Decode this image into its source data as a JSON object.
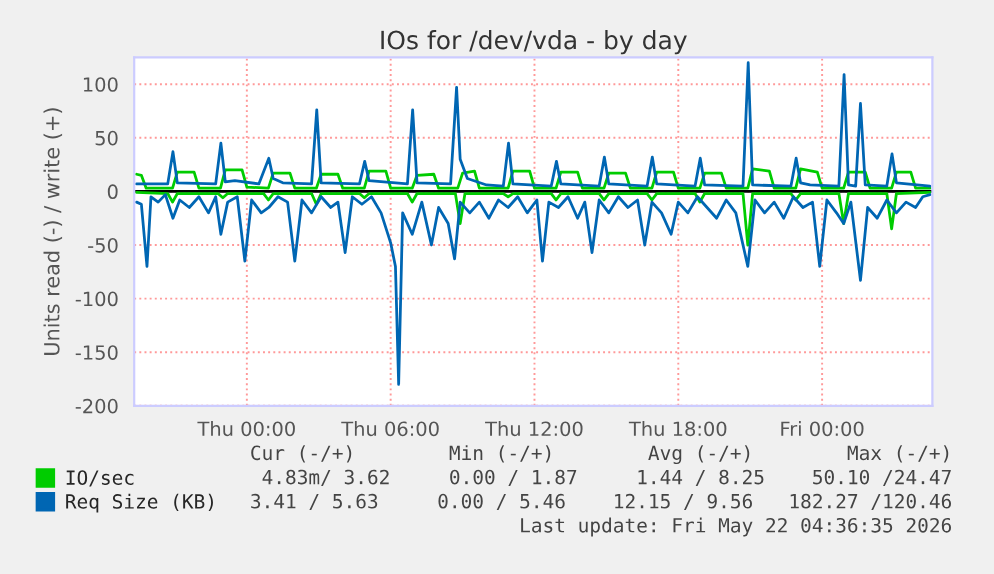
{
  "chart_data": {
    "type": "line",
    "title": "IOs for /dev/vda - by day",
    "ylabel": "Units read (-) / write (+)",
    "xlim": [
      "2026-05-20T19:18",
      "2026-05-22T04:36"
    ],
    "xticks": [
      {
        "value": "2026-05-21T00:00",
        "label": "Thu 00:00"
      },
      {
        "value": "2026-05-21T06:00",
        "label": "Thu 06:00"
      },
      {
        "value": "2026-05-21T12:00",
        "label": "Thu 12:00"
      },
      {
        "value": "2026-05-21T18:00",
        "label": "Thu 18:00"
      },
      {
        "value": "2026-05-22T00:00",
        "label": "Fri 00:00"
      }
    ],
    "ylim": [
      -200,
      125
    ],
    "yticks": [
      -200,
      -150,
      -100,
      -50,
      0,
      50,
      100
    ],
    "grid": true,
    "legend": "bottom left",
    "marker": "none",
    "line_style": "solid",
    "ref_lines": [
      {
        "axis": "y",
        "value": 0,
        "color": "#000000"
      }
    ],
    "series": [
      {
        "name": "IO/sec",
        "color": "#00cc00",
        "x": [
          "2026-05-20T19:24",
          "2026-05-20T19:36",
          "2026-05-20T19:48",
          "2026-05-20T20:54",
          "2026-05-20T21:06",
          "2026-05-20T21:48",
          "2026-05-20T22:00",
          "2026-05-20T22:54",
          "2026-05-20T23:06",
          "2026-05-20T23:48",
          "2026-05-21T00:00",
          "2026-05-21T00:54",
          "2026-05-21T01:06",
          "2026-05-21T01:48",
          "2026-05-21T02:00",
          "2026-05-21T02:54",
          "2026-05-21T03:06",
          "2026-05-21T03:48",
          "2026-05-21T04:00",
          "2026-05-21T04:54",
          "2026-05-21T05:06",
          "2026-05-21T05:48",
          "2026-05-21T06:00",
          "2026-05-21T06:54",
          "2026-05-21T07:06",
          "2026-05-21T07:48",
          "2026-05-21T08:00",
          "2026-05-21T08:48",
          "2026-05-21T09:00",
          "2026-05-21T09:30",
          "2026-05-21T09:42",
          "2026-05-21T10:54",
          "2026-05-21T11:06",
          "2026-05-21T11:48",
          "2026-05-21T12:00",
          "2026-05-21T12:54",
          "2026-05-21T13:06",
          "2026-05-21T13:48",
          "2026-05-21T14:00",
          "2026-05-21T14:54",
          "2026-05-21T15:06",
          "2026-05-21T15:48",
          "2026-05-21T16:00",
          "2026-05-21T16:54",
          "2026-05-21T17:06",
          "2026-05-21T17:48",
          "2026-05-21T18:00",
          "2026-05-21T18:54",
          "2026-05-21T19:06",
          "2026-05-21T19:48",
          "2026-05-21T20:00",
          "2026-05-21T20:54",
          "2026-05-21T21:06",
          "2026-05-21T21:48",
          "2026-05-21T22:00",
          "2026-05-21T22:54",
          "2026-05-21T23:06",
          "2026-05-21T23:48",
          "2026-05-22T00:00",
          "2026-05-22T00:54",
          "2026-05-22T01:06",
          "2026-05-22T01:48",
          "2026-05-22T02:00",
          "2026-05-22T02:54",
          "2026-05-22T03:06",
          "2026-05-22T03:42",
          "2026-05-22T03:54",
          "2026-05-22T04:30"
        ],
        "values": [
          16,
          15,
          3,
          3,
          18,
          18,
          3,
          3,
          20,
          20,
          4,
          3,
          17,
          17,
          3,
          3,
          16,
          16,
          3,
          3,
          19,
          19,
          3,
          3,
          15,
          16,
          3,
          3,
          17,
          19,
          3,
          3,
          19,
          19,
          3,
          3,
          18,
          18,
          3,
          3,
          17,
          17,
          3,
          3,
          18,
          18,
          3,
          3,
          17,
          17,
          3,
          3,
          21,
          19,
          3,
          3,
          21,
          18,
          3,
          3,
          18,
          18,
          3,
          3,
          18,
          18,
          3,
          3
        ]
      },
      {
        "color": "#00cc00",
        "x": [
          "2026-05-20T19:24",
          "2026-05-20T20:42",
          "2026-05-20T20:54",
          "2026-05-20T21:06",
          "2026-05-20T22:48",
          "2026-05-20T23:00",
          "2026-05-20T23:12",
          "2026-05-21T00:42",
          "2026-05-21T00:54",
          "2026-05-21T01:06",
          "2026-05-21T02:42",
          "2026-05-21T02:54",
          "2026-05-21T03:06",
          "2026-05-21T04:42",
          "2026-05-21T04:54",
          "2026-05-21T05:06",
          "2026-05-21T06:42",
          "2026-05-21T06:54",
          "2026-05-21T07:06",
          "2026-05-21T08:42",
          "2026-05-21T08:54",
          "2026-05-21T09:06",
          "2026-05-21T10:42",
          "2026-05-21T10:54",
          "2026-05-21T11:06",
          "2026-05-21T12:42",
          "2026-05-21T12:54",
          "2026-05-21T13:06",
          "2026-05-21T14:42",
          "2026-05-21T14:54",
          "2026-05-21T15:06",
          "2026-05-21T16:42",
          "2026-05-21T16:54",
          "2026-05-21T17:06",
          "2026-05-21T18:42",
          "2026-05-21T18:54",
          "2026-05-21T19:06",
          "2026-05-21T20:42",
          "2026-05-21T20:54",
          "2026-05-21T21:06",
          "2026-05-21T22:42",
          "2026-05-21T22:54",
          "2026-05-21T23:06",
          "2026-05-22T00:42",
          "2026-05-22T00:54",
          "2026-05-22T01:06",
          "2026-05-22T02:42",
          "2026-05-22T02:54",
          "2026-05-22T03:06",
          "2026-05-22T04:30"
        ],
        "values": [
          -1,
          -2,
          -10,
          -2,
          -2,
          -6,
          -2,
          -2,
          -8,
          -2,
          -2,
          -12,
          -2,
          -2,
          -6,
          -2,
          -2,
          -10,
          -2,
          -2,
          -30,
          -2,
          -2,
          -5,
          -2,
          -2,
          -8,
          -2,
          -2,
          -8,
          -2,
          -2,
          -8,
          -2,
          -2,
          -10,
          -2,
          -2,
          -50,
          -2,
          -2,
          -8,
          -2,
          -2,
          -30,
          -2,
          -2,
          -35,
          -2,
          -1
        ]
      },
      {
        "name": "Req Size (KB)",
        "color": "#0066b3",
        "x": [
          "2026-05-20T19:24",
          "2026-05-20T20:42",
          "2026-05-20T20:55",
          "2026-05-20T21:06",
          "2026-05-20T22:42",
          "2026-05-20T22:55",
          "2026-05-20T23:06",
          "2026-05-20T23:30",
          "2026-05-21T00:30",
          "2026-05-21T00:55",
          "2026-05-21T01:06",
          "2026-05-21T01:30",
          "2026-05-21T02:42",
          "2026-05-21T02:55",
          "2026-05-21T03:06",
          "2026-05-21T04:42",
          "2026-05-21T04:55",
          "2026-05-21T05:06",
          "2026-05-21T06:42",
          "2026-05-21T06:55",
          "2026-05-21T07:06",
          "2026-05-21T08:30",
          "2026-05-21T08:45",
          "2026-05-21T08:54",
          "2026-05-21T09:12",
          "2026-05-21T10:00",
          "2026-05-21T10:42",
          "2026-05-21T10:55",
          "2026-05-21T11:06",
          "2026-05-21T12:42",
          "2026-05-21T12:55",
          "2026-05-21T13:06",
          "2026-05-21T14:42",
          "2026-05-21T14:55",
          "2026-05-21T15:06",
          "2026-05-21T16:42",
          "2026-05-21T16:55",
          "2026-05-21T17:06",
          "2026-05-21T18:42",
          "2026-05-21T18:55",
          "2026-05-21T19:06",
          "2026-05-21T20:42",
          "2026-05-21T20:55",
          "2026-05-21T21:06",
          "2026-05-21T22:42",
          "2026-05-21T22:55",
          "2026-05-21T23:06",
          "2026-05-21T23:30",
          "2026-05-22T00:42",
          "2026-05-22T00:55",
          "2026-05-22T01:06",
          "2026-05-22T01:24",
          "2026-05-22T01:36",
          "2026-05-22T01:48",
          "2026-05-22T02:42",
          "2026-05-22T02:55",
          "2026-05-22T03:06",
          "2026-05-22T04:30"
        ],
        "values": [
          7,
          7,
          37,
          8,
          7,
          45,
          9,
          10,
          7,
          31,
          12,
          8,
          7,
          76,
          8,
          7,
          28,
          10,
          7,
          76,
          8,
          7,
          97,
          30,
          12,
          6,
          5,
          45,
          7,
          5,
          28,
          7,
          5,
          32,
          7,
          5,
          32,
          7,
          5,
          31,
          6,
          5,
          120,
          6,
          5,
          31,
          8,
          6,
          5,
          109,
          6,
          5,
          82,
          6,
          5,
          35,
          8,
          5
        ]
      },
      {
        "color": "#0066b3",
        "x": [
          "2026-05-20T19:24",
          "2026-05-20T19:36",
          "2026-05-20T19:50",
          "2026-05-20T20:00",
          "2026-05-20T20:18",
          "2026-05-20T20:36",
          "2026-05-20T20:55",
          "2026-05-20T21:12",
          "2026-05-20T21:36",
          "2026-05-20T22:00",
          "2026-05-20T22:24",
          "2026-05-20T22:42",
          "2026-05-20T22:55",
          "2026-05-20T23:12",
          "2026-05-20T23:36",
          "2026-05-20T23:55",
          "2026-05-21T00:12",
          "2026-05-21T00:36",
          "2026-05-21T00:55",
          "2026-05-21T01:18",
          "2026-05-21T01:42",
          "2026-05-21T02:00",
          "2026-05-21T02:18",
          "2026-05-21T02:42",
          "2026-05-21T03:06",
          "2026-05-21T03:30",
          "2026-05-21T03:48",
          "2026-05-21T04:06",
          "2026-05-21T04:24",
          "2026-05-21T04:48",
          "2026-05-21T05:12",
          "2026-05-21T05:36",
          "2026-05-21T06:00",
          "2026-05-21T06:12",
          "2026-05-21T06:20",
          "2026-05-21T06:30",
          "2026-05-21T06:54",
          "2026-05-21T07:18",
          "2026-05-21T07:42",
          "2026-05-21T08:00",
          "2026-05-21T08:24",
          "2026-05-21T08:40",
          "2026-05-21T08:54",
          "2026-05-21T09:18",
          "2026-05-21T09:42",
          "2026-05-21T10:06",
          "2026-05-21T10:30",
          "2026-05-21T10:54",
          "2026-05-21T11:18",
          "2026-05-21T11:42",
          "2026-05-21T12:06",
          "2026-05-21T12:20",
          "2026-05-21T12:36",
          "2026-05-21T13:00",
          "2026-05-21T13:24",
          "2026-05-21T13:48",
          "2026-05-21T14:06",
          "2026-05-21T14:24",
          "2026-05-21T14:42",
          "2026-05-21T15:06",
          "2026-05-21T15:30",
          "2026-05-21T15:54",
          "2026-05-21T16:18",
          "2026-05-21T16:36",
          "2026-05-21T16:54",
          "2026-05-21T17:18",
          "2026-05-21T17:42",
          "2026-05-21T18:00",
          "2026-05-21T18:24",
          "2026-05-21T18:48",
          "2026-05-21T19:12",
          "2026-05-21T19:36",
          "2026-05-21T20:00",
          "2026-05-21T20:24",
          "2026-05-21T20:54",
          "2026-05-21T21:12",
          "2026-05-21T21:36",
          "2026-05-21T22:00",
          "2026-05-21T22:24",
          "2026-05-21T22:48",
          "2026-05-21T23:12",
          "2026-05-21T23:36",
          "2026-05-21T23:54",
          "2026-05-22T00:12",
          "2026-05-22T00:36",
          "2026-05-22T00:54",
          "2026-05-22T01:12",
          "2026-05-22T01:36",
          "2026-05-22T01:54",
          "2026-05-22T02:18",
          "2026-05-22T02:42",
          "2026-05-22T03:06",
          "2026-05-22T03:30",
          "2026-05-22T03:54",
          "2026-05-22T04:12",
          "2026-05-22T04:30"
        ],
        "values": [
          -10,
          -12,
          -70,
          -5,
          -10,
          -3,
          -25,
          -8,
          -15,
          -5,
          -20,
          -5,
          -40,
          -10,
          -5,
          -65,
          -8,
          -20,
          -15,
          -5,
          -10,
          -65,
          -8,
          -20,
          -5,
          -15,
          -10,
          -57,
          -5,
          -12,
          -5,
          -20,
          -48,
          -70,
          -180,
          -20,
          -40,
          -10,
          -50,
          -15,
          -30,
          -63,
          -10,
          -20,
          -10,
          -25,
          -8,
          -15,
          -5,
          -20,
          -8,
          -65,
          -10,
          -15,
          -5,
          -25,
          -10,
          -57,
          -8,
          -20,
          -5,
          -15,
          -8,
          -50,
          -10,
          -20,
          -40,
          -10,
          -20,
          -5,
          -15,
          -25,
          -8,
          -20,
          -70,
          -8,
          -20,
          -10,
          -25,
          -5,
          -15,
          -10,
          -70,
          -8,
          -20,
          -30,
          -10,
          -83,
          -15,
          -25,
          -8,
          -20,
          -10,
          -15,
          -5,
          -3
        ]
      }
    ],
    "annotations": [
      "Cur (-/+)        Min (-/+)        Avg (-/+)        Max (-/+)",
      "4.83m/ 3.62     0.00 / 1.87     1.44 / 8.25    50.10 /24.47",
      "3.41 / 5.63     0.00 / 5.46    12.15 / 9.56   182.27 /120.46",
      "Last update: Fri May 22 04:36:35 2026"
    ]
  }
}
